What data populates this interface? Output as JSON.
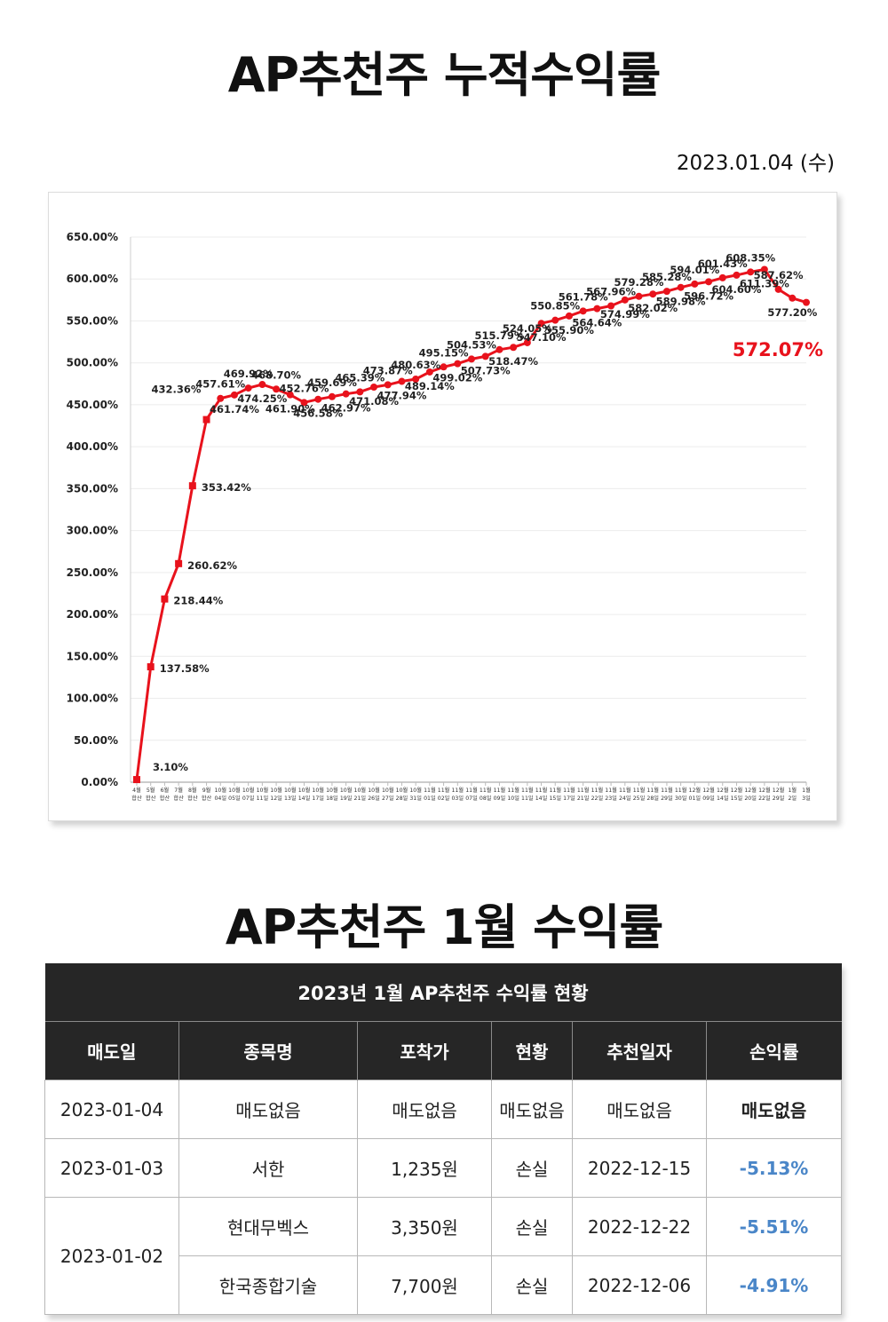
{
  "page": {
    "title1": "AP추천주 누적수익률",
    "date": "2023.01.04 (수)",
    "title2": "AP추천주 1월 수익률"
  },
  "colors": {
    "line": "#e8121c",
    "loss": "#4a86c8",
    "header": "#262626"
  },
  "chart_data": {
    "type": "line",
    "highlight": "572.07%",
    "ylim": [
      0,
      650
    ],
    "yticks": [
      "0.00%",
      "50.00%",
      "100.00%",
      "150.00%",
      "200.00%",
      "250.00%",
      "300.00%",
      "350.00%",
      "400.00%",
      "450.00%",
      "500.00%",
      "550.00%",
      "600.00%",
      "650.00%"
    ],
    "x": [
      [
        "4월",
        "합산"
      ],
      [
        "5월",
        "합산"
      ],
      [
        "6월",
        "합산"
      ],
      [
        "7월",
        "합산"
      ],
      [
        "8월",
        "합산"
      ],
      [
        "9월",
        "합산"
      ],
      [
        "10월",
        "04일"
      ],
      [
        "10월",
        "05일"
      ],
      [
        "10월",
        "07일"
      ],
      [
        "10월",
        "11일"
      ],
      [
        "10월",
        "12일"
      ],
      [
        "10월",
        "13일"
      ],
      [
        "10월",
        "14일"
      ],
      [
        "10월",
        "17일"
      ],
      [
        "10월",
        "18일"
      ],
      [
        "10월",
        "19일"
      ],
      [
        "10월",
        "21일"
      ],
      [
        "10월",
        "26일"
      ],
      [
        "10월",
        "27일"
      ],
      [
        "10월",
        "28일"
      ],
      [
        "10월",
        "31일"
      ],
      [
        "11월",
        "01일"
      ],
      [
        "11월",
        "02일"
      ],
      [
        "11월",
        "03일"
      ],
      [
        "11월",
        "07일"
      ],
      [
        "11월",
        "08일"
      ],
      [
        "11월",
        "09일"
      ],
      [
        "11월",
        "10일"
      ],
      [
        "11월",
        "11일"
      ],
      [
        "11월",
        "14일"
      ],
      [
        "11월",
        "15일"
      ],
      [
        "11월",
        "17일"
      ],
      [
        "11월",
        "21일"
      ],
      [
        "11월",
        "22일"
      ],
      [
        "11월",
        "23일"
      ],
      [
        "11월",
        "24일"
      ],
      [
        "11월",
        "25일"
      ],
      [
        "11월",
        "28일"
      ],
      [
        "11월",
        "29일"
      ],
      [
        "11월",
        "30일"
      ],
      [
        "12월",
        "01일"
      ],
      [
        "12월",
        "09일"
      ],
      [
        "12월",
        "14일"
      ],
      [
        "12월",
        "15일"
      ],
      [
        "12월",
        "20일"
      ],
      [
        "12월",
        "22일"
      ],
      [
        "12월",
        "29일"
      ],
      [
        "1월",
        "2일"
      ],
      [
        "1월",
        "3일"
      ]
    ],
    "values": [
      3.1,
      137.58,
      218.44,
      260.62,
      353.42,
      432.36,
      457.61,
      461.74,
      469.92,
      474.25,
      468.7,
      461.9,
      452.76,
      456.58,
      459.69,
      462.97,
      465.39,
      471.08,
      473.87,
      477.94,
      480.63,
      489.14,
      495.15,
      499.02,
      504.53,
      507.73,
      515.79,
      518.47,
      524.05,
      547.1,
      550.85,
      555.9,
      561.78,
      564.64,
      567.96,
      574.99,
      579.28,
      582.02,
      585.28,
      589.98,
      594.01,
      596.72,
      601.43,
      604.6,
      608.35,
      611.39,
      587.62,
      577.2,
      572.07
    ],
    "labels": [
      "3.10%",
      "137.58%",
      "218.44%",
      "260.62%",
      "353.42%",
      "432.36%",
      "457.61%",
      "461.74%",
      "469.92%",
      "474.25%",
      "468.70%",
      "461.90%",
      "452.76%",
      "456.58%",
      "459.69%",
      "462.97%",
      "465.39%",
      "471.08%",
      "473.87%",
      "477.94%",
      "480.63%",
      "489.14%",
      "495.15%",
      "499.02%",
      "504.53%",
      "507.73%",
      "515.79%",
      "518.47%",
      "524.05%",
      "547.10%",
      "550.85%",
      "555.90%",
      "561.78%",
      "564.64%",
      "567.96%",
      "574.99%",
      "579.28%",
      "582.02%",
      "585.28%",
      "589.98%",
      "594.01%",
      "596.72%",
      "601.43%",
      "604.60%",
      "608.35%",
      "611.39%",
      "587.62%",
      "577.20%"
    ]
  },
  "table": {
    "caption": "2023년 1월 AP추천주 수익률 현황",
    "headers": [
      "매도일",
      "종목명",
      "포착가",
      "현황",
      "추천일자",
      "손익률"
    ],
    "rows": [
      {
        "date": "2023-01-04",
        "name": "매도없음",
        "price": "매도없음",
        "status": "매도없음",
        "rec": "매도없음",
        "rate": "매도없음"
      },
      {
        "date": "2023-01-03",
        "name": "서한",
        "price": "1,235원",
        "status": "손실",
        "rec": "2022-12-15",
        "rate": "-5.13%"
      },
      {
        "date": "2023-01-02",
        "name": "현대무벡스",
        "price": "3,350원",
        "status": "손실",
        "rec": "2022-12-22",
        "rate": "-5.51%"
      },
      {
        "date": "",
        "name": "한국종합기술",
        "price": "7,700원",
        "status": "손실",
        "rec": "2022-12-06",
        "rate": "-4.91%"
      }
    ]
  }
}
